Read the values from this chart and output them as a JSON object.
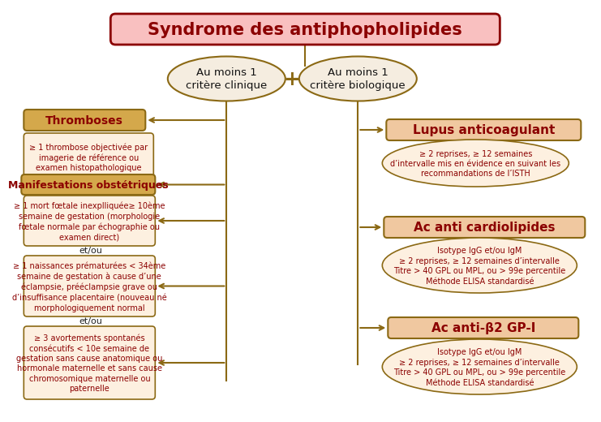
{
  "title": "Syndrome des antiphopholipides",
  "title_bg": "#f9c0c0",
  "title_border": "#8B0000",
  "title_color": "#8B0000",
  "bg_color": "#ffffff",
  "line_color": "#8B6914",
  "rect_label_fill": "#d4a84b",
  "rect_label_border": "#8B6914",
  "rect_label_color": "#8B0000",
  "rect_detail_fill": "#fdf0e0",
  "rect_detail_border": "#8B6914",
  "rect_detail_color": "#8B0000",
  "right_label_fill": "#f0c8a0",
  "right_label_border": "#8B6914",
  "right_label_color": "#8B0000",
  "right_detail_fill": "#fdf0e0",
  "right_detail_border": "#8B6914",
  "right_detail_color": "#8B0000",
  "clinical_ellipse_fill": "#f5ede0",
  "clinical_ellipse_border": "#8B6914",
  "plus_color": "#8B6914",
  "clinical_text": "Au moins 1\ncritère clinique",
  "biologic_text": "Au moins 1\ncritère biologique",
  "left_label_thromboses": "Thromboses",
  "left_detail_thromboses": "≥ 1 thrombose objectivée par\nimagerie de référence ou\nexamen histopathologique",
  "left_label_manifestations": "Manifestations obstétriques",
  "left_detail_1": "≥ 1 mort fœtale inexplliquée≥ 10ème\nsemaine de gestation (morphologie\nfœtale normale par échographie ou\nexamen direct)",
  "left_et_ou_1": "et/ou",
  "left_detail_2": "≥ 1 naissances prématurées < 34ème\nsemaine de gestation à cause d’une\néclampsie, prééclampsie grave ou\nd’insuffisance placentaire (nouveau né\nmorphologiquement normal",
  "left_et_ou_2": "et/ou",
  "left_detail_3": "≥ 3 avortements spontanés\nconsécutifs < 10e semaine de\ngestation sans cause anatomique ou\nhormonale maternelle et sans cause\nchromosomique maternelle ou\npaternelle",
  "right_label_1": "Lupus anticoagulant",
  "right_detail_1": "≥ 2 reprises, ≥ 12 semaines\nd’intervalle mis en évidence en suivant les\nrecommandations de l’ISTH",
  "right_label_2": "Ac anti cardiolipides",
  "right_detail_2": "Isotype IgG et/ou IgM\n≥ 2 reprises, ≥ 12 semaines d’intervalle\nTitre > 40 GPL ou MPL, ou > 99e percentile\nMéthode ELISA standardisé",
  "right_label_3": "Ac anti-β2 GP-I",
  "right_detail_3": "Isotype IgG et/ou IgM\n≥ 2 reprises, ≥ 12 semaines d’intervalle\nTitre > 40 GPL ou MPL, ou > 99e percentile\nMéthode ELISA standardisé"
}
